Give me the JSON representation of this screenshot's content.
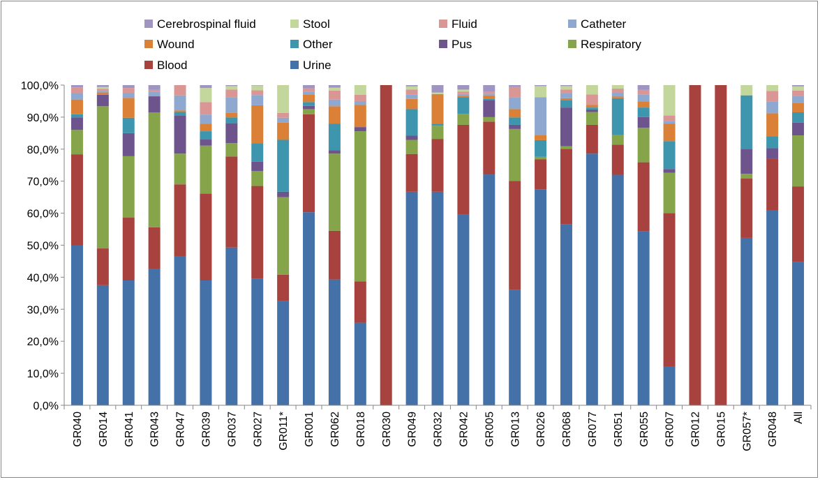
{
  "chart_data": {
    "type": "bar",
    "stacked": true,
    "ylim": [
      0,
      100
    ],
    "ytick_labels": [
      "0,0%",
      "10,0%",
      "20,0%",
      "30,0%",
      "40,0%",
      "50,0%",
      "60,0%",
      "70,0%",
      "80,0%",
      "90,0%",
      "100,0%"
    ],
    "grid": false,
    "legend_position": "top",
    "categories": [
      "GR040",
      "GR014",
      "GR041",
      "GR043",
      "GR047",
      "GR039",
      "GR037",
      "GR027",
      "GR011*",
      "GR001",
      "GR062",
      "GR018",
      "GR030",
      "GR049",
      "GR032",
      "GR042",
      "GR005",
      "GR013",
      "GR026",
      "GR068",
      "GR077",
      "GR051",
      "GR055",
      "GR007",
      "GR012",
      "GR015",
      "GR057*",
      "GR048",
      "All"
    ],
    "legend_order": [
      "Cerebrospinal fluid",
      "Stool",
      "Fluid",
      "Catheter",
      "Wound",
      "Other",
      "Pus",
      "Respiratory",
      "Blood",
      "Urine"
    ],
    "series": [
      {
        "name": "Urine",
        "color": "#4472A8",
        "values": [
          50.0,
          37.5,
          39.0,
          42.7,
          46.5,
          39.0,
          49.3,
          39.5,
          32.5,
          60.3,
          39.3,
          25.8,
          0,
          66.7,
          66.7,
          59.6,
          72.1,
          36.0,
          67.5,
          56.5,
          78.6,
          72.0,
          54.3,
          12.2,
          0,
          0,
          52.3,
          60.8,
          44.8
        ]
      },
      {
        "name": "Blood",
        "color": "#A8423F",
        "values": [
          28.4,
          11.5,
          19.6,
          12.9,
          22.5,
          27.1,
          28.4,
          29.0,
          8.3,
          30.6,
          15.2,
          12.9,
          100,
          11.8,
          16.5,
          28.0,
          16.5,
          34.1,
          9.3,
          23.6,
          9.0,
          9.4,
          21.6,
          47.8,
          100,
          100,
          18.5,
          16.2,
          23.5
        ]
      },
      {
        "name": "Respiratory",
        "color": "#86A44A",
        "values": [
          7.6,
          44.4,
          19.2,
          35.9,
          9.6,
          15.0,
          4.2,
          4.7,
          24.2,
          1.6,
          24.1,
          46.9,
          0,
          4.4,
          4.1,
          3.4,
          1.4,
          16.2,
          0.8,
          0.8,
          4.0,
          3.0,
          10.8,
          12.6,
          0,
          0,
          1.5,
          0,
          16.0
        ]
      },
      {
        "name": "Pus",
        "color": "#6E548D",
        "values": [
          3.9,
          3.6,
          7.2,
          5.0,
          11.9,
          1.9,
          6.2,
          2.9,
          1.7,
          1.0,
          1.1,
          1.3,
          0,
          1.3,
          0,
          0,
          5.3,
          1.3,
          0,
          12.1,
          0.8,
          0,
          3.3,
          1.2,
          0,
          0,
          7.8,
          3.3,
          4.0
        ]
      },
      {
        "name": "Other",
        "color": "#3D96AE",
        "values": [
          1.0,
          0,
          4.8,
          0,
          1.1,
          2.6,
          1.8,
          5.7,
          16.2,
          1.2,
          8.3,
          0,
          0,
          8.3,
          0.6,
          5.2,
          0.5,
          2.3,
          5.2,
          2.3,
          0.6,
          11.5,
          3.0,
          8.7,
          0,
          0,
          16.7,
          3.7,
          3.2
        ]
      },
      {
        "name": "Wound",
        "color": "#DA8137",
        "values": [
          4.6,
          0.7,
          6.2,
          0,
          0.5,
          2.3,
          1.4,
          11.9,
          5.4,
          2.4,
          5.4,
          6.9,
          0,
          3.2,
          9.3,
          0.5,
          1.0,
          2.6,
          1.6,
          0.6,
          0.8,
          0.5,
          1.9,
          5.5,
          0,
          0,
          0,
          7.2,
          3.0
        ]
      },
      {
        "name": "Catheter",
        "color": "#8FA8D0",
        "values": [
          2.0,
          0.5,
          1.6,
          1.5,
          4.7,
          2.9,
          4.8,
          3.2,
          1.5,
          0.8,
          2.1,
          1.2,
          0,
          1.4,
          0,
          0.5,
          0.5,
          3.6,
          11.8,
          1.5,
          0,
          1.3,
          2.2,
          0.8,
          0,
          0,
          0,
          3.6,
          2.1
        ]
      },
      {
        "name": "Fluid",
        "color": "#D99694",
        "values": [
          1.8,
          0.6,
          1.5,
          0.5,
          3.2,
          3.9,
          2.5,
          1.5,
          1.5,
          1.1,
          2.8,
          2.0,
          0,
          1.5,
          0,
          0.8,
          0.6,
          3.3,
          0,
          1.2,
          3.3,
          1.2,
          1.4,
          1.7,
          0,
          0,
          0,
          3.4,
          1.7
        ]
      },
      {
        "name": "Stool",
        "color": "#C3D69B",
        "values": [
          0,
          0.6,
          0,
          0,
          0,
          4.4,
          1.1,
          1.5,
          8.7,
          0,
          0.9,
          3.0,
          0,
          1.0,
          0.5,
          0.6,
          0,
          0,
          3.5,
          1.1,
          2.9,
          1.2,
          0,
          9.5,
          0,
          0,
          3.2,
          3.6,
          1.3
        ]
      },
      {
        "name": "Cerebrospinal fluid",
        "color": "#A094C1",
        "values": [
          0.7,
          0.6,
          0.9,
          1.5,
          0,
          0.9,
          0.3,
          0.1,
          0,
          1.0,
          0.8,
          0,
          0,
          1.4,
          2.3,
          1.4,
          2.1,
          0.6,
          0.3,
          0.3,
          0,
          0,
          1.5,
          0,
          0,
          0,
          0,
          3.2,
          0.4
        ]
      }
    ]
  }
}
